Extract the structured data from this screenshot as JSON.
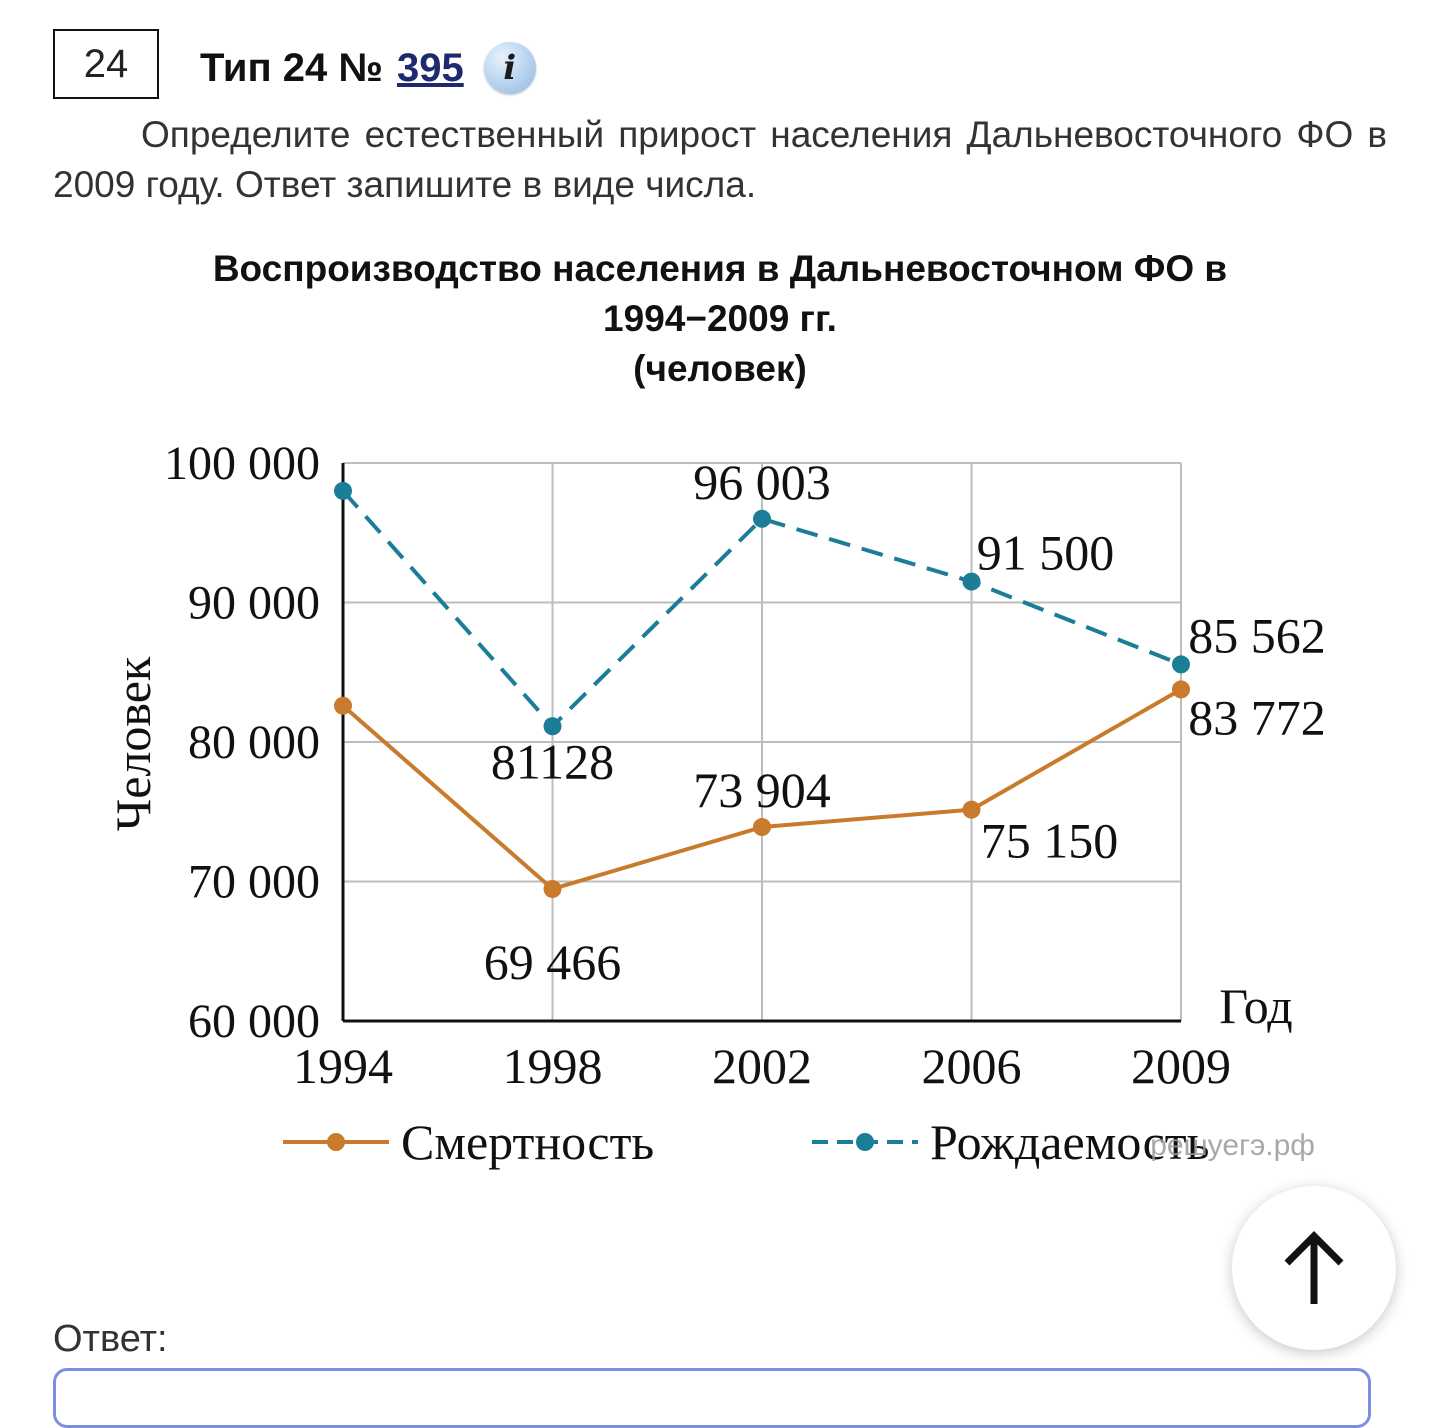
{
  "task": {
    "number": "24",
    "type_label": "Тип 24 №",
    "id_link": "395",
    "info_icon": "i",
    "question": "Определите естественный прирост населения Дальневосточного ФО в 2009 году. Ответ запишите в виде числа."
  },
  "chart_data": {
    "type": "line",
    "title_lines": [
      "Воспроизводство населения в Дальневосточном ФО в",
      "1994−2009 гг.",
      "(человек)"
    ],
    "ylabel": "Человек",
    "xlabel": "Год",
    "categories": [
      "1994",
      "1998",
      "2002",
      "2006",
      "2009"
    ],
    "yticks": [
      100000,
      90000,
      80000,
      70000,
      60000
    ],
    "ytick_labels": [
      "100 000",
      "90 000",
      "80 000",
      "70 000",
      "60 000"
    ],
    "ylim": [
      60000,
      100000
    ],
    "grid": true,
    "legend_position": "bottom",
    "series": [
      {
        "name": "Смертность",
        "color": "#c97a2c",
        "dash": false,
        "values": [
          82600,
          69466,
          73904,
          75150,
          83772
        ],
        "data_labels": [
          "",
          "69 466",
          "73 904",
          "75 150",
          "83 772"
        ]
      },
      {
        "name": "Рождаемость",
        "color": "#1b7d96",
        "dash": true,
        "values": [
          98000,
          81128,
          96003,
          91500,
          85562
        ],
        "data_labels": [
          "",
          "81128",
          "96 003",
          "91 500",
          "85 562"
        ]
      }
    ],
    "watermark": "решуегэ.рф"
  },
  "answer": {
    "label": "Ответ:",
    "value": ""
  }
}
